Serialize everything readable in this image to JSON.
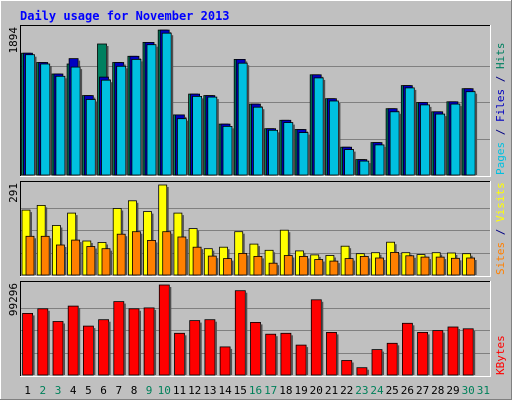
{
  "chart_data": {
    "title": "Daily usage for November 2013",
    "type": "bar",
    "x": [
      "1",
      "2",
      "3",
      "4",
      "5",
      "6",
      "7",
      "8",
      "9",
      "10",
      "11",
      "12",
      "13",
      "14",
      "15",
      "16",
      "17",
      "18",
      "19",
      "20",
      "21",
      "22",
      "23",
      "24",
      "25",
      "26",
      "27",
      "28",
      "29",
      "30",
      "31"
    ],
    "weekend_days": [
      "2",
      "3",
      "9",
      "10",
      "16",
      "17",
      "23",
      "24",
      "30",
      "31"
    ],
    "panels": [
      {
        "id": "top",
        "max_label": "1894",
        "ymax": 1894,
        "right_label": [
          {
            "text": "Pages",
            "color": "#00c0e0"
          },
          {
            "text": " / ",
            "color": "#000080"
          },
          {
            "text": "Files",
            "color": "#0000c0"
          },
          {
            "text": " / ",
            "color": "#000080"
          },
          {
            "text": "Hits",
            "color": "#008060"
          }
        ],
        "series": [
          {
            "name": "Hits",
            "color": "#008060",
            "values": [
              1580,
              1460,
              1310,
              1440,
              1030,
              1700,
              1460,
              1540,
              1720,
              1880,
              780,
              1050,
              1030,
              660,
              1500,
              920,
              600,
              710,
              590,
              1300,
              990,
              360,
              200,
              420,
              860,
              1160,
              940,
              820,
              950,
              1120
            ]
          },
          {
            "name": "Files",
            "color": "#0000c0",
            "values": [
              1580,
              1460,
              1310,
              1510,
              1030,
              1270,
              1460,
              1540,
              1720,
              1880,
              780,
              1050,
              1030,
              660,
              1500,
              920,
              600,
              710,
              590,
              1300,
              990,
              360,
              200,
              420,
              860,
              1160,
              940,
              820,
              950,
              1120
            ]
          },
          {
            "name": "Pages",
            "color": "#00c0e0",
            "values": [
              1560,
              1440,
              1280,
              1400,
              980,
              1230,
              1410,
              1500,
              1690,
              1840,
              730,
              1020,
              1010,
              630,
              1450,
              880,
              580,
              680,
              550,
              1260,
              960,
              330,
              180,
              390,
              820,
              1130,
              910,
              790,
              920,
              1080
            ]
          }
        ]
      },
      {
        "id": "middle",
        "max_label": "291",
        "ymax": 291,
        "right_label": [
          {
            "text": "Sites",
            "color": "#ff8000"
          },
          {
            "text": " / ",
            "color": "#000080"
          },
          {
            "text": "Visits",
            "color": "#ffff00"
          }
        ],
        "series": [
          {
            "name": "Visits",
            "color": "#ffff00",
            "values": [
              210,
              225,
              160,
              200,
              110,
              105,
              215,
              240,
              205,
              291,
              200,
              150,
              85,
              90,
              140,
              100,
              80,
              145,
              78,
              65,
              63,
              93,
              69,
              72,
              106,
              72,
              66,
              72,
              71,
              69
            ]
          },
          {
            "name": "Sites",
            "color": "#ff8000",
            "values": [
              125,
              125,
              97,
              113,
              92,
              85,
              132,
              140,
              112,
              140,
              123,
              90,
              61,
              53,
              70,
              60,
              38,
              63,
              60,
              50,
              45,
              53,
              60,
              55,
              73,
              62,
              58,
              58,
              54,
              55
            ]
          }
        ]
      },
      {
        "id": "bottom",
        "max_label": "99296",
        "ymax": 99296,
        "right_label": [
          {
            "text": "KBytes",
            "color": "#ff0000"
          }
        ],
        "series": [
          {
            "name": "KBytes",
            "color": "#ff0000",
            "values": [
              68000,
              73000,
              59000,
              76000,
              54000,
              61000,
              81000,
              73000,
              74000,
              99296,
              46000,
              60000,
              61000,
              31000,
              93000,
              58000,
              45000,
              46000,
              33000,
              83000,
              47000,
              16000,
              8000,
              28000,
              35000,
              57000,
              47000,
              49000,
              53000,
              51000
            ]
          }
        ]
      }
    ]
  }
}
